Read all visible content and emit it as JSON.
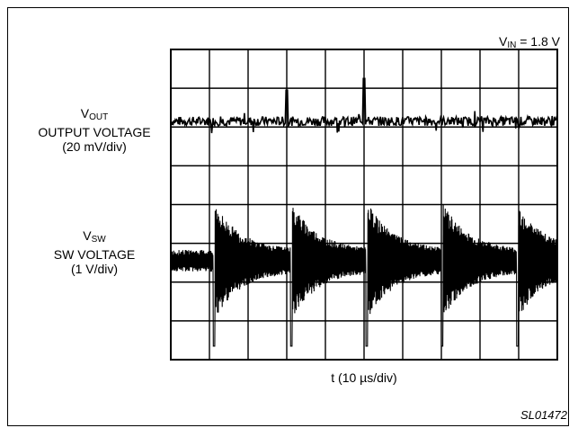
{
  "condition": {
    "var": "V",
    "sub": "IN",
    "rest": " = 1.8 V"
  },
  "x_axis_label": "t (10 µs/div)",
  "figure_id": "SL01472",
  "traces": {
    "vout": {
      "var": "V",
      "sub": "OUT",
      "line1": "OUTPUT VOLTAGE",
      "line2": "(20 mV/div)"
    },
    "vsw": {
      "var": "V",
      "sub": "SW",
      "line1": "SW VOLTAGE",
      "line2": "(1 V/div)"
    }
  },
  "chart_data": {
    "type": "line",
    "title": "",
    "xlabel": "t (10 µs/div)",
    "grid": {
      "x_divisions": 10,
      "y_divisions": 8
    },
    "series": [
      {
        "name": "VOUT OUTPUT VOLTAGE (20 mV/div)",
        "scale_per_div": "20 mV/div",
        "baseline_div": 6.15,
        "noise_div": 0.12,
        "spikes": [
          {
            "t_div": 3.0,
            "amp_div": 0.8
          },
          {
            "t_div": 5.0,
            "amp_div": 1.1
          }
        ]
      },
      {
        "name": "VSW SW VOLTAGE (1 V/div)",
        "scale_per_div": "1 V/div",
        "baseline_div": 2.55,
        "ringing_starts_t_div": [
          1.1,
          3.1,
          5.05,
          7.0,
          8.95
        ],
        "ring_peak_div": 1.3,
        "ring_negative_div": 2.2,
        "decay_t_div": 1.2
      }
    ]
  },
  "colors": {
    "ink": "#000000",
    "paper": "#ffffff"
  }
}
